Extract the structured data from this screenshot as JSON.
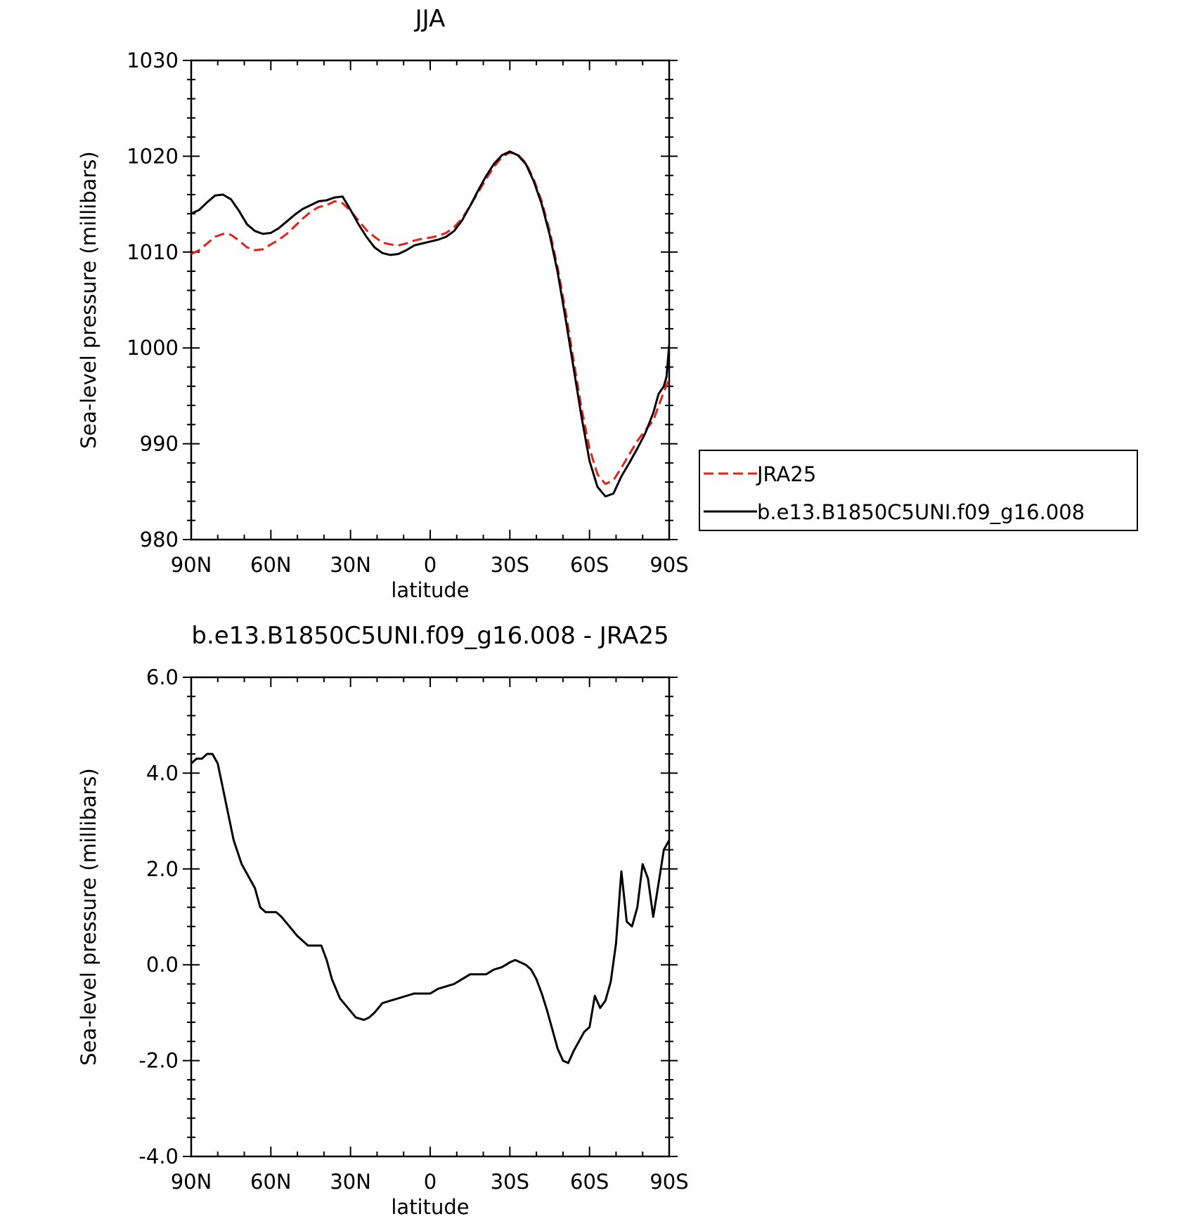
{
  "chart_data": [
    {
      "type": "line",
      "title": "JJA",
      "xlabel": "latitude",
      "ylabel": "Sea-level pressure (millibars)",
      "xlim": [
        90,
        -90
      ],
      "ylim": [
        980,
        1030
      ],
      "x_ticks": [
        {
          "value": 90,
          "label": "90N"
        },
        {
          "value": 60,
          "label": "60N"
        },
        {
          "value": 30,
          "label": "30N"
        },
        {
          "value": 0,
          "label": "0"
        },
        {
          "value": -30,
          "label": "30S"
        },
        {
          "value": -60,
          "label": "60S"
        },
        {
          "value": -90,
          "label": "90S"
        }
      ],
      "y_ticks": [
        {
          "value": 980,
          "label": "980"
        },
        {
          "value": 990,
          "label": "990"
        },
        {
          "value": 1000,
          "label": "1000"
        },
        {
          "value": 1010,
          "label": "1010"
        },
        {
          "value": 1020,
          "label": "1020"
        },
        {
          "value": 1030,
          "label": "1030"
        }
      ],
      "grid": false,
      "legend_position": "right",
      "series": [
        {
          "name": "JRA25",
          "color": "#e8201a",
          "dash": "dashed",
          "points": [
            [
              90,
              1009.8
            ],
            [
              87,
              1010.2
            ],
            [
              84,
              1010.9
            ],
            [
              81,
              1011.6
            ],
            [
              78,
              1011.9
            ],
            [
              75,
              1011.8
            ],
            [
              72,
              1011.2
            ],
            [
              69,
              1010.5
            ],
            [
              66,
              1010.2
            ],
            [
              63,
              1010.3
            ],
            [
              60,
              1010.8
            ],
            [
              57,
              1011.3
            ],
            [
              54,
              1011.9
            ],
            [
              51,
              1012.7
            ],
            [
              48,
              1013.5
            ],
            [
              45,
              1014.2
            ],
            [
              42,
              1014.7
            ],
            [
              39,
              1014.9
            ],
            [
              36,
              1015.3
            ],
            [
              33,
              1015.1
            ],
            [
              30,
              1014.3
            ],
            [
              27,
              1013.3
            ],
            [
              24,
              1012.3
            ],
            [
              21,
              1011.6
            ],
            [
              18,
              1011.0
            ],
            [
              15,
              1010.8
            ],
            [
              12,
              1010.7
            ],
            [
              9,
              1010.9
            ],
            [
              6,
              1011.2
            ],
            [
              3,
              1011.4
            ],
            [
              0,
              1011.5
            ],
            [
              -3,
              1011.7
            ],
            [
              -6,
              1012.0
            ],
            [
              -9,
              1012.6
            ],
            [
              -12,
              1013.5
            ],
            [
              -15,
              1014.8
            ],
            [
              -18,
              1016.2
            ],
            [
              -21,
              1017.6
            ],
            [
              -24,
              1018.9
            ],
            [
              -27,
              1019.9
            ],
            [
              -30,
              1020.4
            ],
            [
              -33,
              1020.2
            ],
            [
              -36,
              1019.3
            ],
            [
              -39,
              1017.6
            ],
            [
              -42,
              1015.3
            ],
            [
              -45,
              1012.2
            ],
            [
              -48,
              1008.4
            ],
            [
              -51,
              1003.8
            ],
            [
              -54,
              998.7
            ],
            [
              -57,
              993.7
            ],
            [
              -60,
              989.5
            ],
            [
              -63,
              986.8
            ],
            [
              -66,
              985.8
            ],
            [
              -69,
              986.2
            ],
            [
              -72,
              987.5
            ],
            [
              -75,
              988.9
            ],
            [
              -78,
              990.3
            ],
            [
              -81,
              991.4
            ],
            [
              -84,
              992.4
            ],
            [
              -87,
              994.7
            ],
            [
              -90,
              996.8
            ]
          ]
        },
        {
          "name": "b.e13.B1850C5UNI.f09_g16.008",
          "color": "#000000",
          "dash": "solid",
          "points": [
            [
              90,
              1014.0
            ],
            [
              87,
              1014.4
            ],
            [
              84,
              1015.2
            ],
            [
              81,
              1015.9
            ],
            [
              78,
              1016.0
            ],
            [
              75,
              1015.5
            ],
            [
              72,
              1014.3
            ],
            [
              69,
              1012.9
            ],
            [
              66,
              1012.2
            ],
            [
              63,
              1011.9
            ],
            [
              60,
              1012.0
            ],
            [
              57,
              1012.5
            ],
            [
              54,
              1013.2
            ],
            [
              51,
              1013.9
            ],
            [
              48,
              1014.5
            ],
            [
              45,
              1014.9
            ],
            [
              42,
              1015.3
            ],
            [
              39,
              1015.4
            ],
            [
              36,
              1015.7
            ],
            [
              33,
              1015.8
            ],
            [
              30,
              1014.4
            ],
            [
              27,
              1012.9
            ],
            [
              24,
              1011.6
            ],
            [
              21,
              1010.5
            ],
            [
              18,
              1009.9
            ],
            [
              15,
              1009.7
            ],
            [
              12,
              1009.8
            ],
            [
              9,
              1010.2
            ],
            [
              6,
              1010.7
            ],
            [
              3,
              1010.9
            ],
            [
              0,
              1011.1
            ],
            [
              -3,
              1011.3
            ],
            [
              -6,
              1011.6
            ],
            [
              -9,
              1012.2
            ],
            [
              -12,
              1013.3
            ],
            [
              -15,
              1014.8
            ],
            [
              -18,
              1016.4
            ],
            [
              -21,
              1017.9
            ],
            [
              -24,
              1019.2
            ],
            [
              -27,
              1020.1
            ],
            [
              -30,
              1020.5
            ],
            [
              -33,
              1020.1
            ],
            [
              -36,
              1019.2
            ],
            [
              -39,
              1017.4
            ],
            [
              -42,
              1015.0
            ],
            [
              -45,
              1011.8
            ],
            [
              -48,
              1007.9
            ],
            [
              -51,
              1003.0
            ],
            [
              -54,
              997.9
            ],
            [
              -57,
              992.8
            ],
            [
              -60,
              988.2
            ],
            [
              -63,
              985.5
            ],
            [
              -66,
              984.5
            ],
            [
              -69,
              984.8
            ],
            [
              -72,
              986.6
            ],
            [
              -75,
              988.0
            ],
            [
              -78,
              989.5
            ],
            [
              -81,
              991.1
            ],
            [
              -84,
              993.2
            ],
            [
              -86,
              995.2
            ],
            [
              -88,
              996.0
            ],
            [
              -89,
              997.0
            ],
            [
              -90,
              1000.3
            ]
          ]
        }
      ]
    },
    {
      "type": "line",
      "title": "b.e13.B1850C5UNI.f09_g16.008 - JRA25",
      "xlabel": "latitude",
      "ylabel": "Sea-level pressure (millibars)",
      "xlim": [
        90,
        -90
      ],
      "ylim": [
        -4,
        6
      ],
      "x_ticks": [
        {
          "value": 90,
          "label": "90N"
        },
        {
          "value": 60,
          "label": "60N"
        },
        {
          "value": 30,
          "label": "30N"
        },
        {
          "value": 0,
          "label": "0"
        },
        {
          "value": -30,
          "label": "30S"
        },
        {
          "value": -60,
          "label": "60S"
        },
        {
          "value": -90,
          "label": "90S"
        }
      ],
      "y_ticks": [
        {
          "value": -4,
          "label": "-4.0"
        },
        {
          "value": -2,
          "label": "-2.0"
        },
        {
          "value": 0,
          "label": "0.0"
        },
        {
          "value": 2,
          "label": "2.0"
        },
        {
          "value": 4,
          "label": "4.0"
        },
        {
          "value": 6,
          "label": "6.0"
        }
      ],
      "grid": false,
      "series": [
        {
          "color": "#000000",
          "dash": "solid",
          "points": [
            [
              90,
              4.2
            ],
            [
              88,
              4.3
            ],
            [
              86,
              4.3
            ],
            [
              84,
              4.4
            ],
            [
              82,
              4.4
            ],
            [
              80,
              4.2
            ],
            [
              77,
              3.4
            ],
            [
              74,
              2.6
            ],
            [
              71,
              2.1
            ],
            [
              68,
              1.8
            ],
            [
              66,
              1.6
            ],
            [
              64,
              1.2
            ],
            [
              62,
              1.1
            ],
            [
              60,
              1.1
            ],
            [
              58,
              1.1
            ],
            [
              56,
              1.0
            ],
            [
              53,
              0.8
            ],
            [
              50,
              0.6
            ],
            [
              48,
              0.5
            ],
            [
              46,
              0.4
            ],
            [
              43,
              0.4
            ],
            [
              41,
              0.4
            ],
            [
              39,
              0.1
            ],
            [
              37,
              -0.3
            ],
            [
              34,
              -0.7
            ],
            [
              31,
              -0.9
            ],
            [
              28,
              -1.1
            ],
            [
              25,
              -1.15
            ],
            [
              23,
              -1.1
            ],
            [
              21,
              -1.0
            ],
            [
              18,
              -0.8
            ],
            [
              15,
              -0.75
            ],
            [
              12,
              -0.7
            ],
            [
              9,
              -0.65
            ],
            [
              6,
              -0.6
            ],
            [
              3,
              -0.6
            ],
            [
              0,
              -0.6
            ],
            [
              -3,
              -0.5
            ],
            [
              -6,
              -0.45
            ],
            [
              -9,
              -0.4
            ],
            [
              -12,
              -0.3
            ],
            [
              -15,
              -0.2
            ],
            [
              -18,
              -0.2
            ],
            [
              -21,
              -0.2
            ],
            [
              -24,
              -0.1
            ],
            [
              -27,
              -0.05
            ],
            [
              -30,
              0.05
            ],
            [
              -32,
              0.1
            ],
            [
              -34,
              0.05
            ],
            [
              -36,
              0.0
            ],
            [
              -38,
              -0.1
            ],
            [
              -40,
              -0.3
            ],
            [
              -42,
              -0.6
            ],
            [
              -44,
              -0.95
            ],
            [
              -46,
              -1.35
            ],
            [
              -48,
              -1.75
            ],
            [
              -50,
              -2.0
            ],
            [
              -52,
              -2.05
            ],
            [
              -54,
              -1.8
            ],
            [
              -56,
              -1.6
            ],
            [
              -58,
              -1.4
            ],
            [
              -60,
              -1.3
            ],
            [
              -62,
              -0.65
            ],
            [
              -64,
              -0.9
            ],
            [
              -66,
              -0.75
            ],
            [
              -68,
              -0.35
            ],
            [
              -70,
              0.45
            ],
            [
              -72,
              1.95
            ],
            [
              -74,
              0.9
            ],
            [
              -76,
              0.8
            ],
            [
              -78,
              1.2
            ],
            [
              -80,
              2.1
            ],
            [
              -82,
              1.8
            ],
            [
              -84,
              1.0
            ],
            [
              -86,
              1.7
            ],
            [
              -88,
              2.4
            ],
            [
              -90,
              2.6
            ]
          ]
        }
      ]
    }
  ]
}
